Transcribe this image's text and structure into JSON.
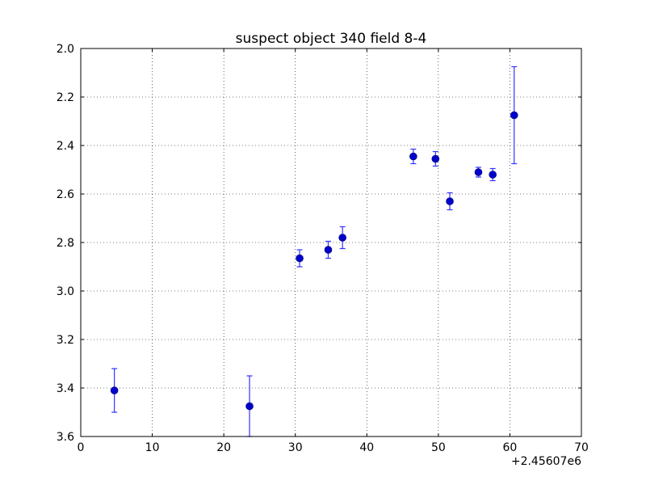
{
  "chart_data": {
    "type": "scatter",
    "title": "suspect object 340 field 8-4",
    "xlabel": "",
    "ylabel": "",
    "x_offset_label": "+2.45607e6",
    "xlim": [
      0,
      70
    ],
    "ylim": [
      3.6,
      2.0
    ],
    "y_inverted": true,
    "grid": true,
    "x_ticks": [
      "0",
      "10",
      "20",
      "30",
      "40",
      "50",
      "60",
      "70"
    ],
    "y_ticks": [
      "2.0",
      "2.2",
      "2.4",
      "2.6",
      "2.8",
      "3.0",
      "3.2",
      "3.4",
      "3.6"
    ],
    "series": [
      {
        "color": "#0000cc",
        "errorbar_color": "#3333ff",
        "points": [
          {
            "x": 4.7,
            "y": 3.41,
            "err": 0.09
          },
          {
            "x": 23.6,
            "y": 3.475,
            "err": 0.125
          },
          {
            "x": 30.6,
            "y": 2.865,
            "err": 0.035
          },
          {
            "x": 34.6,
            "y": 2.83,
            "err": 0.035
          },
          {
            "x": 36.6,
            "y": 2.78,
            "err": 0.045
          },
          {
            "x": 46.5,
            "y": 2.445,
            "err": 0.03
          },
          {
            "x": 49.6,
            "y": 2.455,
            "err": 0.03
          },
          {
            "x": 51.6,
            "y": 2.63,
            "err": 0.035
          },
          {
            "x": 55.6,
            "y": 2.51,
            "err": 0.02
          },
          {
            "x": 57.6,
            "y": 2.52,
            "err": 0.025
          },
          {
            "x": 60.6,
            "y": 2.275,
            "err": 0.2
          }
        ]
      }
    ]
  }
}
